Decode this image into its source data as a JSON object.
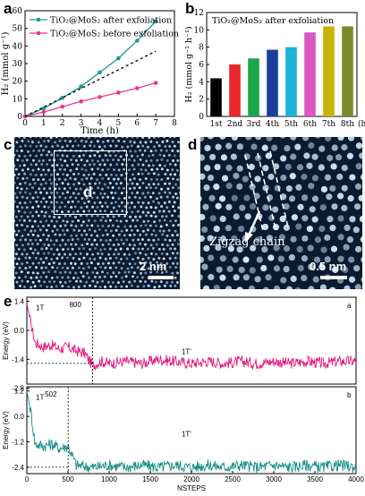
{
  "panel_labels": {
    "a": "a",
    "b": "b",
    "c": "c",
    "d": "d",
    "e": "e"
  },
  "colors": {
    "after": "#1a9a8f",
    "before": "#e6398f",
    "trend": "#000000",
    "tem_bg": "#0a1a30",
    "tem_bright": "#cfe8ff",
    "md_top": "#e0197f",
    "md_bottom": "#138f86"
  },
  "chart_data": [
    {
      "id": "a",
      "type": "line",
      "xlabel": "Time (h)",
      "ylabel": "H₂ (mmol g⁻¹)",
      "xlim": [
        0,
        8
      ],
      "ylim": [
        0,
        60
      ],
      "xticks": [
        0,
        1,
        2,
        3,
        4,
        5,
        6,
        7,
        8
      ],
      "yticks": [
        0,
        10,
        20,
        30,
        40,
        50,
        60
      ],
      "series": [
        {
          "name": "TiO₂@MoS₂ after exfoliation",
          "color": "#1a9a8f",
          "marker": "circle",
          "x": [
            0,
            1,
            2,
            3,
            4,
            5,
            6,
            7
          ],
          "y": [
            0,
            4.5,
            10.5,
            17,
            25,
            33,
            43,
            54
          ]
        },
        {
          "name": "TiO₂@MoS₂ before exfoliation",
          "color": "#e6398f",
          "marker": "circle",
          "x": [
            0,
            1,
            2,
            3,
            4,
            5,
            6,
            7
          ],
          "y": [
            0,
            2.5,
            5.5,
            8.5,
            11,
            13.5,
            16,
            19
          ]
        },
        {
          "name": "",
          "color": "#000000",
          "style": "dashed",
          "x": [
            0,
            7
          ],
          "y": [
            0,
            37
          ]
        }
      ],
      "legend": "top-left"
    },
    {
      "id": "b",
      "type": "bar",
      "title": "TiO₂@MoS₂ after exfoliation",
      "ylabel": "H₂ (mmol g⁻¹ h⁻¹)",
      "xlabel": "(h)",
      "categories": [
        "1st",
        "2nd",
        "3rd",
        "4th",
        "5th",
        "6th",
        "7th",
        "8th"
      ],
      "values": [
        4.4,
        6.0,
        6.7,
        7.7,
        8.0,
        9.7,
        10.4,
        10.4
      ],
      "colors": [
        "#000000",
        "#e8262b",
        "#1aa64a",
        "#1a3fa0",
        "#1bb3d6",
        "#d957c4",
        "#c8b400",
        "#7a8a2a"
      ],
      "ylim": [
        0,
        12
      ],
      "yticks": [
        0,
        2,
        4,
        6,
        8,
        10,
        12
      ]
    },
    {
      "id": "e-top",
      "type": "line",
      "label": "a",
      "ylabel": "Energy (eV)",
      "xlim": [
        0,
        4000
      ],
      "ylim": [
        -2.6,
        1.6
      ],
      "yticks": [
        1.4,
        0.0,
        -1.4,
        -2.8
      ],
      "color": "#e0197f",
      "annotations": [
        "1T",
        "800",
        "1T'"
      ],
      "transition_step": 800,
      "series": [
        {
          "x": [
            0,
            50,
            100,
            200,
            300,
            400,
            500,
            600,
            700,
            800,
            900,
            1000,
            1200,
            1400,
            1600,
            1800,
            2000,
            2200,
            2400,
            2600,
            2800,
            3000,
            3200,
            3400,
            3600,
            3800,
            4000
          ],
          "y": [
            1.3,
            0.3,
            -0.6,
            -0.8,
            -0.7,
            -0.9,
            -0.8,
            -1.0,
            -1.1,
            -1.7,
            -1.5,
            -1.6,
            -1.5,
            -1.6,
            -1.4,
            -1.5,
            -1.6,
            -1.5,
            -1.6,
            -1.5,
            -1.6,
            -1.5,
            -1.6,
            -1.5,
            -1.6,
            -1.5,
            -1.5
          ]
        }
      ]
    },
    {
      "id": "e-bottom",
      "type": "line",
      "label": "b",
      "ylabel": "Energy (eV)",
      "xlabel": "NSTEPS",
      "xlim": [
        0,
        4000
      ],
      "ylim": [
        -2.7,
        1.4
      ],
      "xticks": [
        0,
        500,
        1000,
        1500,
        2000,
        2500,
        3000,
        3500,
        4000
      ],
      "yticks": [
        1.2,
        0.0,
        -1.2,
        -2.4
      ],
      "color": "#138f86",
      "annotations": [
        "1T",
        "502",
        "1T'"
      ],
      "transition_step": 502,
      "series": [
        {
          "x": [
            0,
            50,
            100,
            200,
            300,
            400,
            500,
            600,
            800,
            1000,
            1200,
            1400,
            1600,
            1800,
            2000,
            2200,
            2400,
            2600,
            2800,
            3000,
            3200,
            3400,
            3600,
            3800,
            4000
          ],
          "y": [
            1.2,
            0.2,
            -1.3,
            -1.4,
            -1.3,
            -1.5,
            -1.4,
            -2.3,
            -2.4,
            -2.3,
            -2.4,
            -2.3,
            -2.4,
            -2.3,
            -2.4,
            -2.3,
            -2.4,
            -2.3,
            -2.4,
            -2.3,
            -2.4,
            -2.3,
            -2.4,
            -2.3,
            -2.4
          ]
        }
      ]
    }
  ],
  "tem": {
    "c_box_label": "d",
    "c_scalebar": "2 nm",
    "d_annotation": "Zigzag chain",
    "d_scalebar": "0.5 nm"
  }
}
